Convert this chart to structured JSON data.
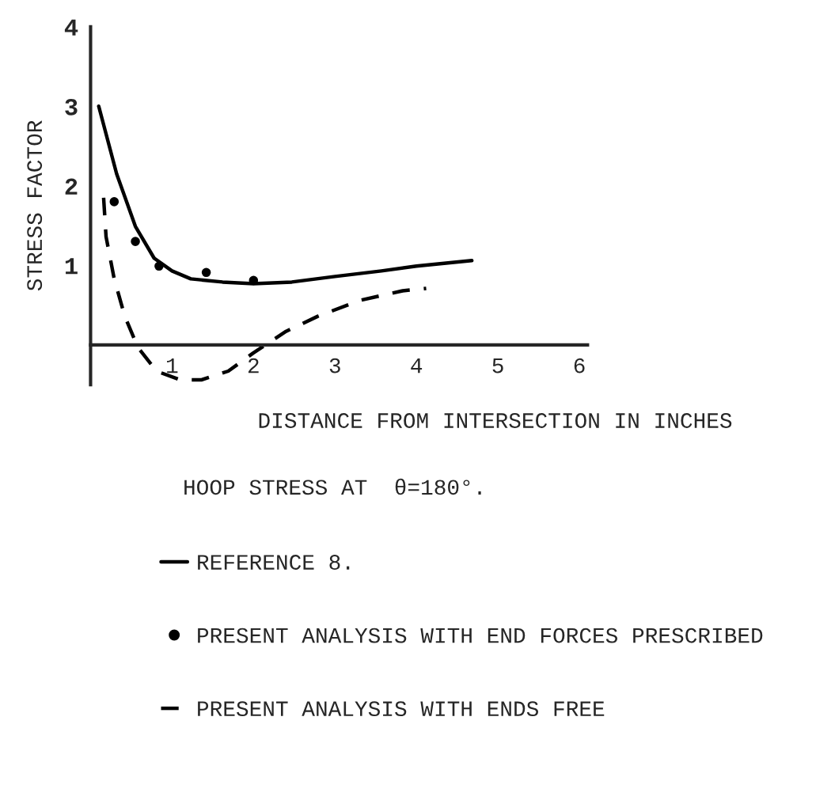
{
  "chart_data": {
    "type": "line",
    "xlabel": "DISTANCE FROM INTERSECTION IN INCHES",
    "ylabel": "STRESS FACTOR",
    "annotations": [
      "HOOP STRESS AT  θ=180°."
    ],
    "xlim": [
      0,
      6.1
    ],
    "xticks": [
      1,
      2,
      3,
      4,
      5,
      6
    ],
    "ylim": [
      -0.5,
      4
    ],
    "yticks": [
      1,
      2,
      3,
      4
    ],
    "grid": false,
    "legend": "bottom",
    "series": [
      {
        "name": "REFERENCE 8.",
        "color": "#000000",
        "line_style": "solid",
        "marker": "none",
        "x": [
          0.1,
          0.32,
          0.55,
          0.78,
          1.0,
          1.23,
          1.62,
          2.0,
          2.47,
          3.0,
          3.57,
          4.0,
          4.68
        ],
        "values": [
          3.0,
          2.15,
          1.49,
          1.09,
          0.93,
          0.83,
          0.79,
          0.77,
          0.79,
          0.86,
          0.93,
          0.99,
          1.06
        ]
      },
      {
        "name": "PRESENT ANALYSIS WITH END FORCES PRESCRIBED",
        "type": "scatter",
        "color": "#000000",
        "marker": "circle",
        "x": [
          0.29,
          0.55,
          0.84,
          1.42,
          2.0
        ],
        "values": [
          1.8,
          1.3,
          0.99,
          0.91,
          0.81
        ]
      },
      {
        "name": "PRESENT ANALYSIS WITH ENDS FREE",
        "color": "#000000",
        "line_style": "dashed",
        "marker": "none",
        "x": [
          0.16,
          0.19,
          0.29,
          0.42,
          0.58,
          0.81,
          1.1,
          1.36,
          1.69,
          2.0,
          2.4,
          2.79,
          3.31,
          3.83,
          4.12
        ],
        "values": [
          1.85,
          1.36,
          0.83,
          0.36,
          -0.03,
          -0.33,
          -0.44,
          -0.44,
          -0.33,
          -0.1,
          0.17,
          0.36,
          0.56,
          0.68,
          0.71
        ]
      }
    ]
  }
}
